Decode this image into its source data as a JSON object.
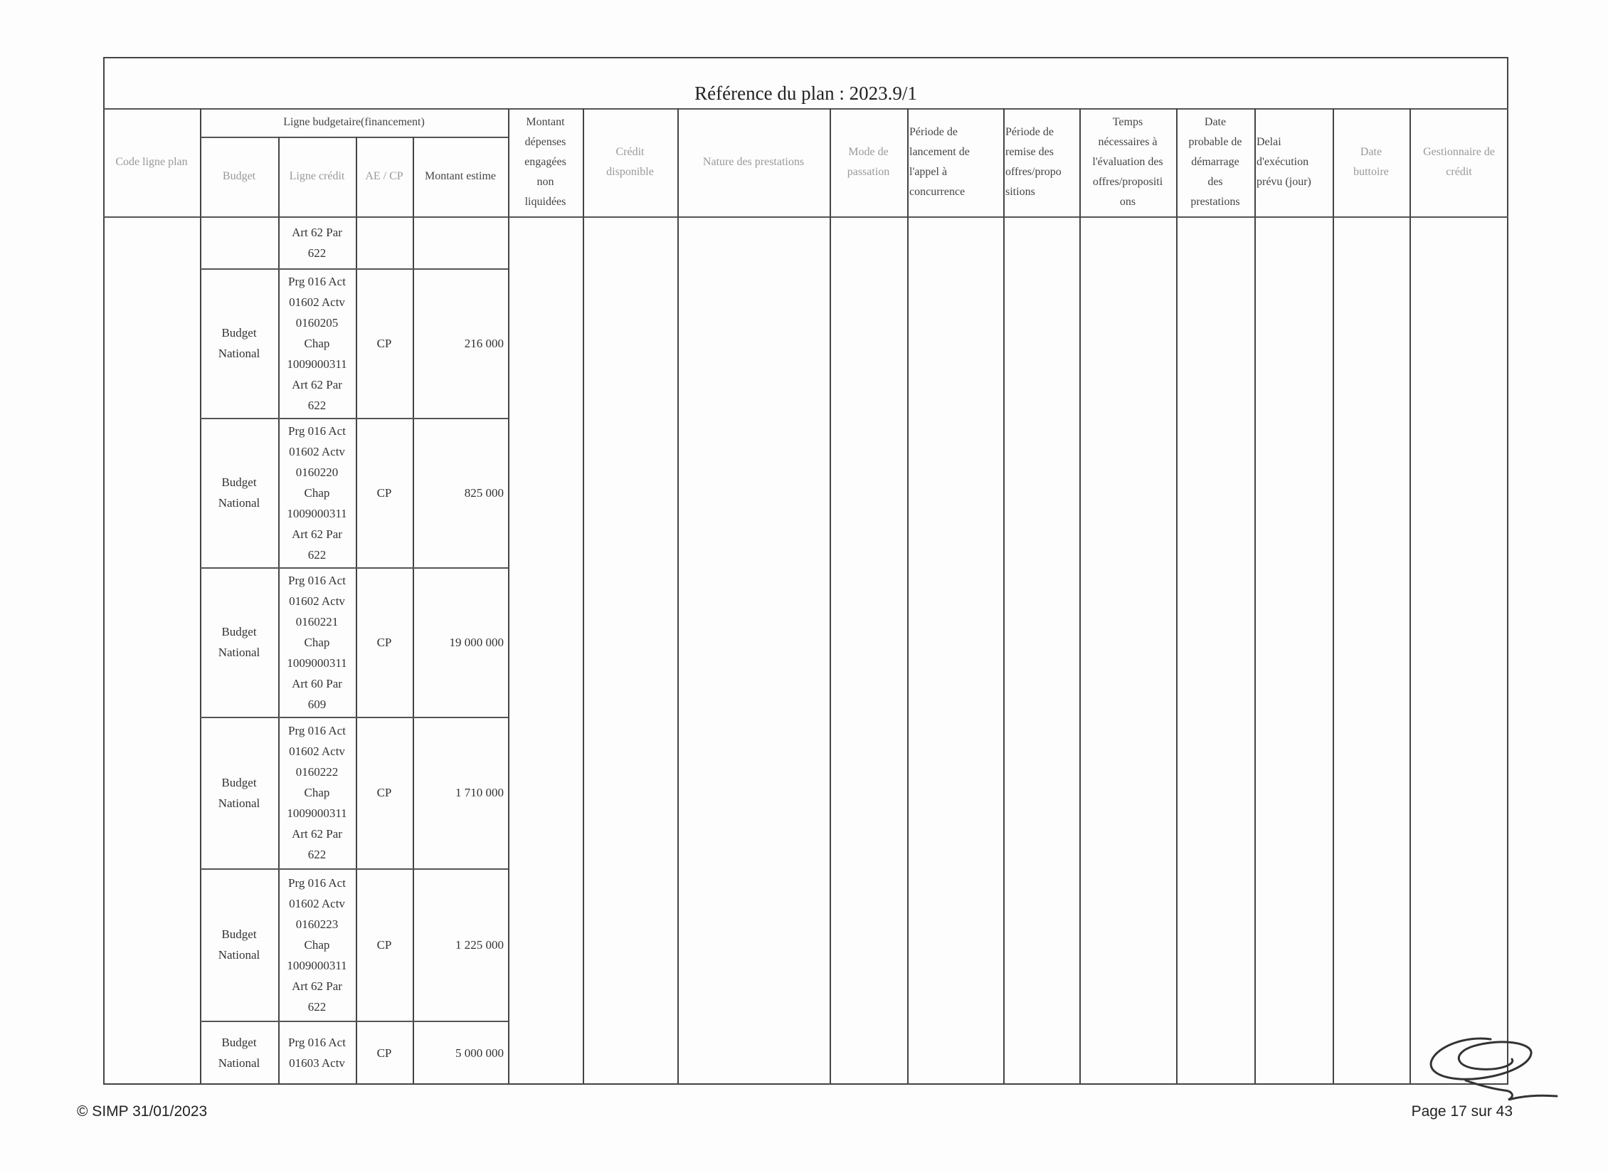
{
  "document": {
    "title": "Référence du plan : 2023.9/1",
    "header": {
      "code_ligne_plan": "Code ligne plan",
      "ligne_budgetaire": "Ligne budgetaire(financement)",
      "budget": "Budget",
      "ligne_credit": "Ligne crédit",
      "ae_cp": "AE / CP",
      "montant_estime": "Montant estime",
      "montant_depenses": "Montant\ndépenses\nengagées\nnon\nliquidées",
      "credit_disponible": "Crédit\ndisponible",
      "nature_prestations": "Nature des prestations",
      "mode_passation": "Mode de\npassation",
      "periode_lancement": "Période de\nlancement de\nl'appel à\nconcurrence",
      "periode_remise": "Période de\nremise des\noffres/propo\nsitions",
      "temps_evaluation": "Temps\nnécessaires à\nl'évaluation des\noffres/propositi\nons",
      "date_demarrage": "Date\nprobable de\ndémarrage\ndes\nprestations",
      "delai_execution": "Delai\nd'exécution\nprévu (jour)",
      "date_butoire": "Date\nbuttoire",
      "gestionnaire_credit": "Gestionnaire de\ncrédit"
    },
    "rows": [
      {
        "budget": "",
        "ligne_credit": "Art 62 Par\n622",
        "ae_cp": "",
        "montant": ""
      },
      {
        "budget": "Budget\nNational",
        "ligne_credit": "Prg 016 Act\n01602 Actv\n0160205\nChap\n1009000311\nArt 62 Par\n622",
        "ae_cp": "CP",
        "montant": "216 000"
      },
      {
        "budget": "Budget\nNational",
        "ligne_credit": "Prg 016 Act\n01602 Actv\n0160220\nChap\n1009000311\nArt 62 Par\n622",
        "ae_cp": "CP",
        "montant": "825 000"
      },
      {
        "budget": "Budget\nNational",
        "ligne_credit": "Prg 016 Act\n01602 Actv\n0160221\nChap\n1009000311\nArt 60 Par\n609",
        "ae_cp": "CP",
        "montant": "19 000 000"
      },
      {
        "budget": "Budget\nNational",
        "ligne_credit": "Prg 016 Act\n01602 Actv\n0160222\nChap\n1009000311\nArt 62 Par\n622",
        "ae_cp": "CP",
        "montant": "1 710 000"
      },
      {
        "budget": "Budget\nNational",
        "ligne_credit": "Prg 016 Act\n01602 Actv\n0160223\nChap\n1009000311\nArt 62 Par\n622",
        "ae_cp": "CP",
        "montant": "1 225 000"
      },
      {
        "budget": "Budget\nNational",
        "ligne_credit": "Prg 016 Act\n01603 Actv",
        "ae_cp": "CP",
        "montant": "5 000 000"
      }
    ],
    "footer": {
      "copyright": "© SIMP 31/01/2023",
      "page": "Page 17 sur 43"
    }
  }
}
